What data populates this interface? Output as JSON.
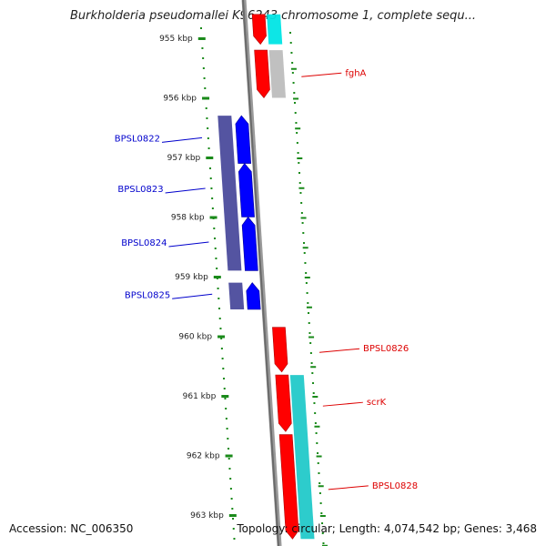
{
  "title": "Burkholderia pseudomallei K96243 chromosome 1, complete sequ...",
  "ruler": {
    "unit": "kbp",
    "ticks": [
      {
        "label": "955 kbp"
      },
      {
        "label": "956 kbp"
      },
      {
        "label": "957 kbp"
      },
      {
        "label": "958 kbp"
      },
      {
        "label": "959 kbp"
      },
      {
        "label": "960 kbp"
      },
      {
        "label": "961 kbp"
      },
      {
        "label": "962 kbp"
      },
      {
        "label": "963 kbp"
      }
    ]
  },
  "genes": [
    {
      "label": "",
      "strand": "forward",
      "start_kbp": 954.6,
      "end_kbp": 955.1,
      "color": "#ff0000"
    },
    {
      "label": "fghA",
      "strand": "forward",
      "start_kbp": 955.2,
      "end_kbp": 956.0,
      "color": "#ff0000"
    },
    {
      "label": "BPSL0822",
      "strand": "reverse",
      "start_kbp": 956.3,
      "end_kbp": 957.1,
      "color": "#0000ff"
    },
    {
      "label": "BPSL0823",
      "strand": "reverse",
      "start_kbp": 957.1,
      "end_kbp": 958.0,
      "color": "#0000ff"
    },
    {
      "label": "BPSL0824",
      "strand": "reverse",
      "start_kbp": 958.0,
      "end_kbp": 958.9,
      "color": "#0000ff"
    },
    {
      "label": "BPSL0825",
      "strand": "reverse",
      "start_kbp": 959.1,
      "end_kbp": 959.55,
      "color": "#0000ff"
    },
    {
      "label": "BPSL0826",
      "strand": "forward",
      "start_kbp": 959.85,
      "end_kbp": 960.6,
      "color": "#ff0000"
    },
    {
      "label": "scrK",
      "strand": "forward",
      "start_kbp": 960.65,
      "end_kbp": 961.6,
      "color": "#ff0000"
    },
    {
      "label": "BPSL0828",
      "strand": "forward",
      "start_kbp": 961.65,
      "end_kbp": 963.4,
      "color": "#ff0000"
    }
  ],
  "cds_tracks": [
    {
      "strand": "forward",
      "start_kbp": 954.6,
      "end_kbp": 955.1,
      "color": "#00e5e5"
    },
    {
      "strand": "forward",
      "start_kbp": 955.2,
      "end_kbp": 956.0,
      "color": "#bdbdbd"
    },
    {
      "strand": "reverse",
      "start_kbp": 956.3,
      "end_kbp": 958.9,
      "color": "#4b4b9c"
    },
    {
      "strand": "reverse",
      "start_kbp": 959.1,
      "end_kbp": 959.55,
      "color": "#4b4b9c"
    },
    {
      "strand": "forward",
      "start_kbp": 960.65,
      "end_kbp": 963.4,
      "color": "#22c9c9"
    }
  ],
  "footer": {
    "accession": "Accession: NC_006350",
    "summary": "Topology: circular; Length: 4,074,542 bp; Genes: 3,468"
  }
}
